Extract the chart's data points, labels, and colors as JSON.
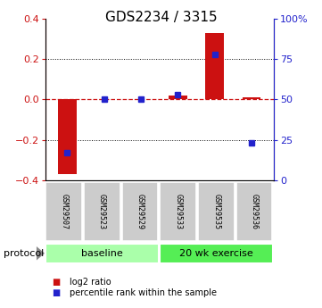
{
  "title": "GDS2234 / 3315",
  "samples": [
    "GSM29507",
    "GSM29523",
    "GSM29529",
    "GSM29533",
    "GSM29535",
    "GSM29536"
  ],
  "log2_ratio": [
    -0.37,
    0.0,
    0.0,
    0.02,
    0.33,
    0.01
  ],
  "percentile_rank": [
    17,
    50,
    50,
    53,
    78,
    23
  ],
  "ylim_left": [
    -0.4,
    0.4
  ],
  "yticks_left": [
    -0.4,
    -0.2,
    0.0,
    0.2,
    0.4
  ],
  "yticks_right": [
    0,
    25,
    50,
    75,
    100
  ],
  "groups": [
    {
      "label": "baseline",
      "indices": [
        0,
        1,
        2
      ],
      "color": "#aaffaa"
    },
    {
      "label": "20 wk exercise",
      "indices": [
        3,
        4,
        5
      ],
      "color": "#55ee55"
    }
  ],
  "bar_color": "#cc1111",
  "dot_color": "#2222cc",
  "hline_color": "#cc1111",
  "grid_color": "#000000",
  "bg_color": "#ffffff",
  "protocol_label": "protocol",
  "legend_red_label": "log2 ratio",
  "legend_blue_label": "percentile rank within the sample",
  "left_tick_color": "#cc1111",
  "right_tick_color": "#2222cc",
  "title_fontsize": 11,
  "tick_fontsize": 8,
  "bar_width": 0.5,
  "sample_label_fontsize": 6,
  "group_label_fontsize": 8,
  "legend_fontsize": 7
}
